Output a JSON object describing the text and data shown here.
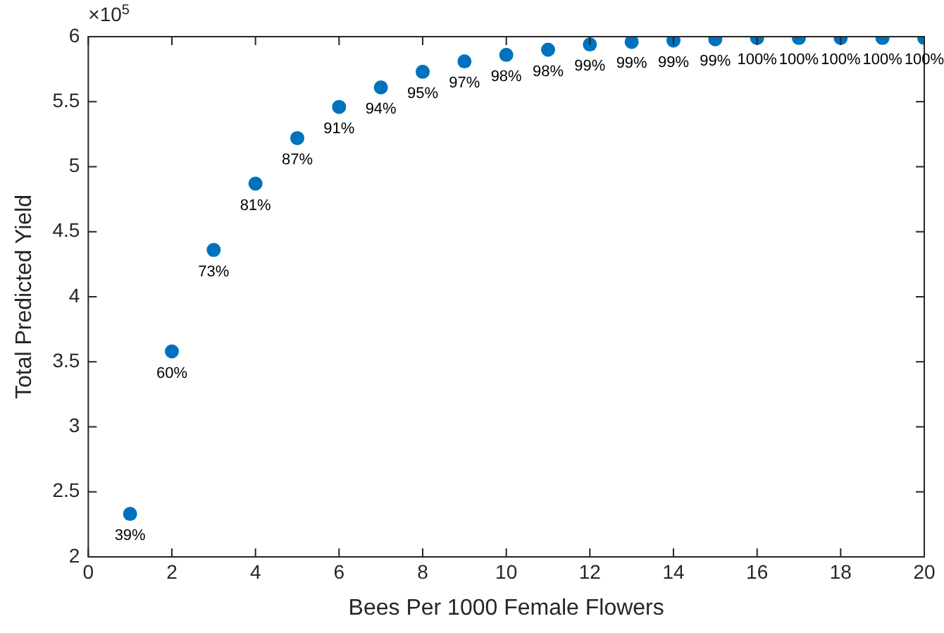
{
  "chart_data": {
    "type": "scatter",
    "xlabel": "Bees Per 1000 Female Flowers",
    "ylabel": "Total Predicted Yield",
    "annotations": [
      "×10$^{5}$",
      {
        "text": "39%",
        "x": 1,
        "y": 2.33
      },
      {
        "text": "60%",
        "x": 2,
        "y": 3.58
      },
      {
        "text": "73%",
        "x": 3,
        "y": 4.36
      },
      {
        "text": "81%",
        "x": 4,
        "y": 4.87
      },
      {
        "text": "87%",
        "x": 5,
        "y": 5.22
      },
      {
        "text": "91%",
        "x": 6,
        "y": 5.46
      },
      {
        "text": "94%",
        "x": 7,
        "y": 5.61
      },
      {
        "text": "95%",
        "x": 8,
        "y": 5.73
      },
      {
        "text": "97%",
        "x": 9,
        "y": 5.81
      },
      {
        "text": "98%",
        "x": 10,
        "y": 5.86
      },
      {
        "text": "98%",
        "x": 11,
        "y": 5.9
      },
      {
        "text": "99%",
        "x": 12,
        "y": 5.94
      },
      {
        "text": "99%",
        "x": 13,
        "y": 5.96
      },
      {
        "text": "99%",
        "x": 14,
        "y": 5.97
      },
      {
        "text": "99%",
        "x": 15,
        "y": 5.98
      },
      {
        "text": "100%",
        "x": 16,
        "y": 5.99
      },
      {
        "text": "100%",
        "x": 17,
        "y": 5.99
      },
      {
        "text": "100%",
        "x": 18,
        "y": 5.99
      },
      {
        "text": "100%",
        "x": 19,
        "y": 5.99
      },
      {
        "text": "100%",
        "x": 20,
        "y": 5.99
      }
    ],
    "x": [
      1,
      2,
      3,
      4,
      5,
      6,
      7,
      8,
      9,
      10,
      11,
      12,
      13,
      14,
      15,
      16,
      17,
      18,
      19,
      20
    ],
    "series": [
      {
        "color": "#0072bd",
        "values": [
          2.33,
          3.58,
          4.36,
          4.87,
          5.22,
          5.46,
          5.61,
          5.73,
          5.81,
          5.86,
          5.9,
          5.94,
          5.96,
          5.97,
          5.98,
          5.99,
          5.99,
          5.99,
          5.99,
          5.99
        ]
      }
    ],
    "marker": "circle",
    "grid": false,
    "legend": false,
    "xlim": [
      0,
      20
    ],
    "xticks": [
      0,
      2,
      4,
      6,
      8,
      10,
      12,
      14,
      16,
      18,
      20
    ],
    "ylim": [
      2,
      6
    ],
    "yticks": [
      2,
      2.5,
      3,
      3.5,
      4,
      4.5,
      5,
      5.5,
      6
    ]
  }
}
